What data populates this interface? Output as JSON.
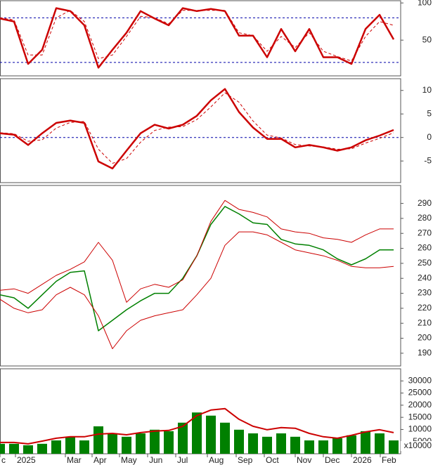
{
  "chart_data": [
    {
      "type": "line",
      "x": [
        0,
        10,
        20,
        30,
        40,
        50,
        60,
        70,
        80,
        90,
        100,
        110,
        120,
        130,
        140,
        150,
        160,
        170,
        180,
        190,
        200,
        210,
        220,
        230,
        240,
        250,
        260,
        270,
        280
      ],
      "xlim": [
        0,
        285
      ],
      "ylim": [
        2,
        103
      ],
      "yticks": [
        50,
        100
      ],
      "ref_lines": [
        20,
        80
      ],
      "ref_color": "#0000aa",
      "series": [
        {
          "color": "#cc0000",
          "width": 2.5,
          "values": [
            79,
            75,
            18,
            37,
            93,
            89,
            70,
            13,
            37,
            60,
            89,
            79,
            70,
            93,
            89,
            92,
            89,
            56,
            56,
            27,
            65,
            35,
            65,
            27,
            27,
            18,
            65,
            84,
            51
          ]
        },
        {
          "color": "#cc0000",
          "width": 1,
          "dash": true,
          "values": [
            80,
            77,
            30,
            30,
            80,
            90,
            75,
            25,
            30,
            55,
            82,
            80,
            72,
            90,
            90,
            90,
            90,
            60,
            56,
            35,
            55,
            40,
            60,
            35,
            28,
            22,
            55,
            75,
            70
          ]
        }
      ]
    },
    {
      "type": "line",
      "x": [
        0,
        10,
        20,
        30,
        40,
        50,
        60,
        70,
        80,
        90,
        100,
        110,
        120,
        130,
        140,
        150,
        160,
        170,
        180,
        190,
        200,
        210,
        220,
        230,
        240,
        250,
        260,
        270,
        280
      ],
      "xlim": [
        0,
        285
      ],
      "ylim": [
        -9.6,
        12.5
      ],
      "yticks": [
        10,
        5,
        0,
        -5
      ],
      "ref_lines": [
        0
      ],
      "ref_color": "#0000aa",
      "series": [
        {
          "color": "#cc0000",
          "width": 2.5,
          "values": [
            0.9,
            0.6,
            -1.6,
            0.9,
            3.1,
            3.6,
            3.1,
            -5.1,
            -6.6,
            -2.8,
            0.9,
            2.7,
            1.9,
            2.7,
            4.6,
            7.9,
            10.3,
            5.4,
            2.1,
            -0.3,
            -0.3,
            -2.1,
            -1.6,
            -2.1,
            -2.8,
            -2.1,
            -0.6,
            0.4,
            1.6
          ]
        },
        {
          "color": "#cc0000",
          "width": 1,
          "dash": true,
          "values": [
            1.0,
            0.8,
            -0.8,
            -0.5,
            2.0,
            3.2,
            3.4,
            -2.5,
            -5.5,
            -4.5,
            -1.0,
            1.5,
            2.2,
            2.3,
            3.8,
            6.5,
            9.5,
            7.5,
            3.5,
            0.5,
            -0.1,
            -1.5,
            -1.8,
            -2.0,
            -2.5,
            -2.4,
            -1.2,
            -0.2,
            1.0
          ]
        }
      ]
    },
    {
      "type": "line",
      "x": [
        0,
        10,
        20,
        30,
        40,
        50,
        60,
        70,
        80,
        90,
        100,
        110,
        120,
        130,
        140,
        150,
        160,
        170,
        180,
        190,
        200,
        210,
        220,
        230,
        240,
        250,
        260,
        270,
        280
      ],
      "xlim": [
        0,
        285
      ],
      "ylim": [
        181.5,
        302
      ],
      "yticks": [
        190,
        200,
        210,
        220,
        230,
        240,
        250,
        260,
        270,
        280,
        290
      ],
      "series": [
        {
          "color": "#008000",
          "width": 1.5,
          "values": [
            229,
            227,
            220,
            229,
            238,
            244,
            245,
            205,
            212,
            219,
            225,
            230,
            230,
            240,
            255,
            276,
            288,
            283,
            277,
            276,
            266,
            263,
            262,
            259,
            253,
            249,
            253,
            259,
            259
          ]
        },
        {
          "color": "#cc0000",
          "width": 1,
          "values": [
            232,
            233,
            230,
            236,
            242,
            246,
            251,
            264,
            252,
            224,
            233,
            236,
            234,
            239,
            255,
            278,
            292,
            286,
            284,
            281,
            273,
            271,
            270,
            267,
            266,
            264,
            269,
            273,
            273
          ]
        },
        {
          "color": "#cc0000",
          "width": 1,
          "values": [
            226,
            220,
            217,
            219,
            229,
            234,
            229,
            215,
            193,
            205,
            212,
            215,
            217,
            219,
            229,
            240,
            262,
            271,
            271,
            269,
            264,
            259,
            257,
            255,
            252,
            248,
            247,
            247,
            248
          ]
        }
      ]
    },
    {
      "type": "bar",
      "x": [
        0,
        10,
        20,
        30,
        40,
        50,
        60,
        70,
        80,
        90,
        100,
        110,
        120,
        130,
        140,
        150,
        160,
        170,
        180,
        190,
        200,
        210,
        220,
        230,
        240,
        250,
        260,
        270,
        280
      ],
      "xlim": [
        0,
        285
      ],
      "ylim": [
        0,
        35000
      ],
      "yticks": [
        5000,
        10000,
        15000,
        20000,
        25000,
        30000
      ],
      "annotation": "x10000",
      "xticks": [
        {
          "value": 0,
          "label": "c"
        },
        {
          "value": 11,
          "label": "2025"
        },
        {
          "value": 46.5,
          "label": "Mar"
        },
        {
          "value": 65.5,
          "label": "Apr"
        },
        {
          "value": 85,
          "label": "May"
        },
        {
          "value": 105,
          "label": "Jun"
        },
        {
          "value": 125,
          "label": "Jul"
        },
        {
          "value": 147.5,
          "label": "Aug"
        },
        {
          "value": 168,
          "label": "Sep"
        },
        {
          "value": 188,
          "label": "Oct"
        },
        {
          "value": 210,
          "label": "Nov"
        },
        {
          "value": 230,
          "label": "Dec"
        },
        {
          "value": 250,
          "label": "2026"
        },
        {
          "value": 270.5,
          "label": "Feb"
        }
      ],
      "series": [
        {
          "color": "#008000",
          "mark": "bar",
          "values": [
            4100,
            4100,
            3500,
            4100,
            5500,
            7000,
            5500,
            11300,
            8400,
            7000,
            8400,
            9900,
            9300,
            12800,
            17000,
            15700,
            12800,
            9900,
            8400,
            7000,
            8400,
            7000,
            5500,
            5500,
            6400,
            7600,
            9300,
            8400,
            5500
          ]
        },
        {
          "color": "#cc0000",
          "width": 2,
          "values": [
            4650,
            4650,
            4070,
            5200,
            6400,
            7000,
            7000,
            8100,
            8400,
            7800,
            8700,
            9300,
            9600,
            11300,
            15700,
            18000,
            18600,
            14200,
            11300,
            9900,
            10800,
            10500,
            8400,
            7000,
            6400,
            7600,
            9000,
            9900,
            8700
          ]
        }
      ]
    }
  ]
}
